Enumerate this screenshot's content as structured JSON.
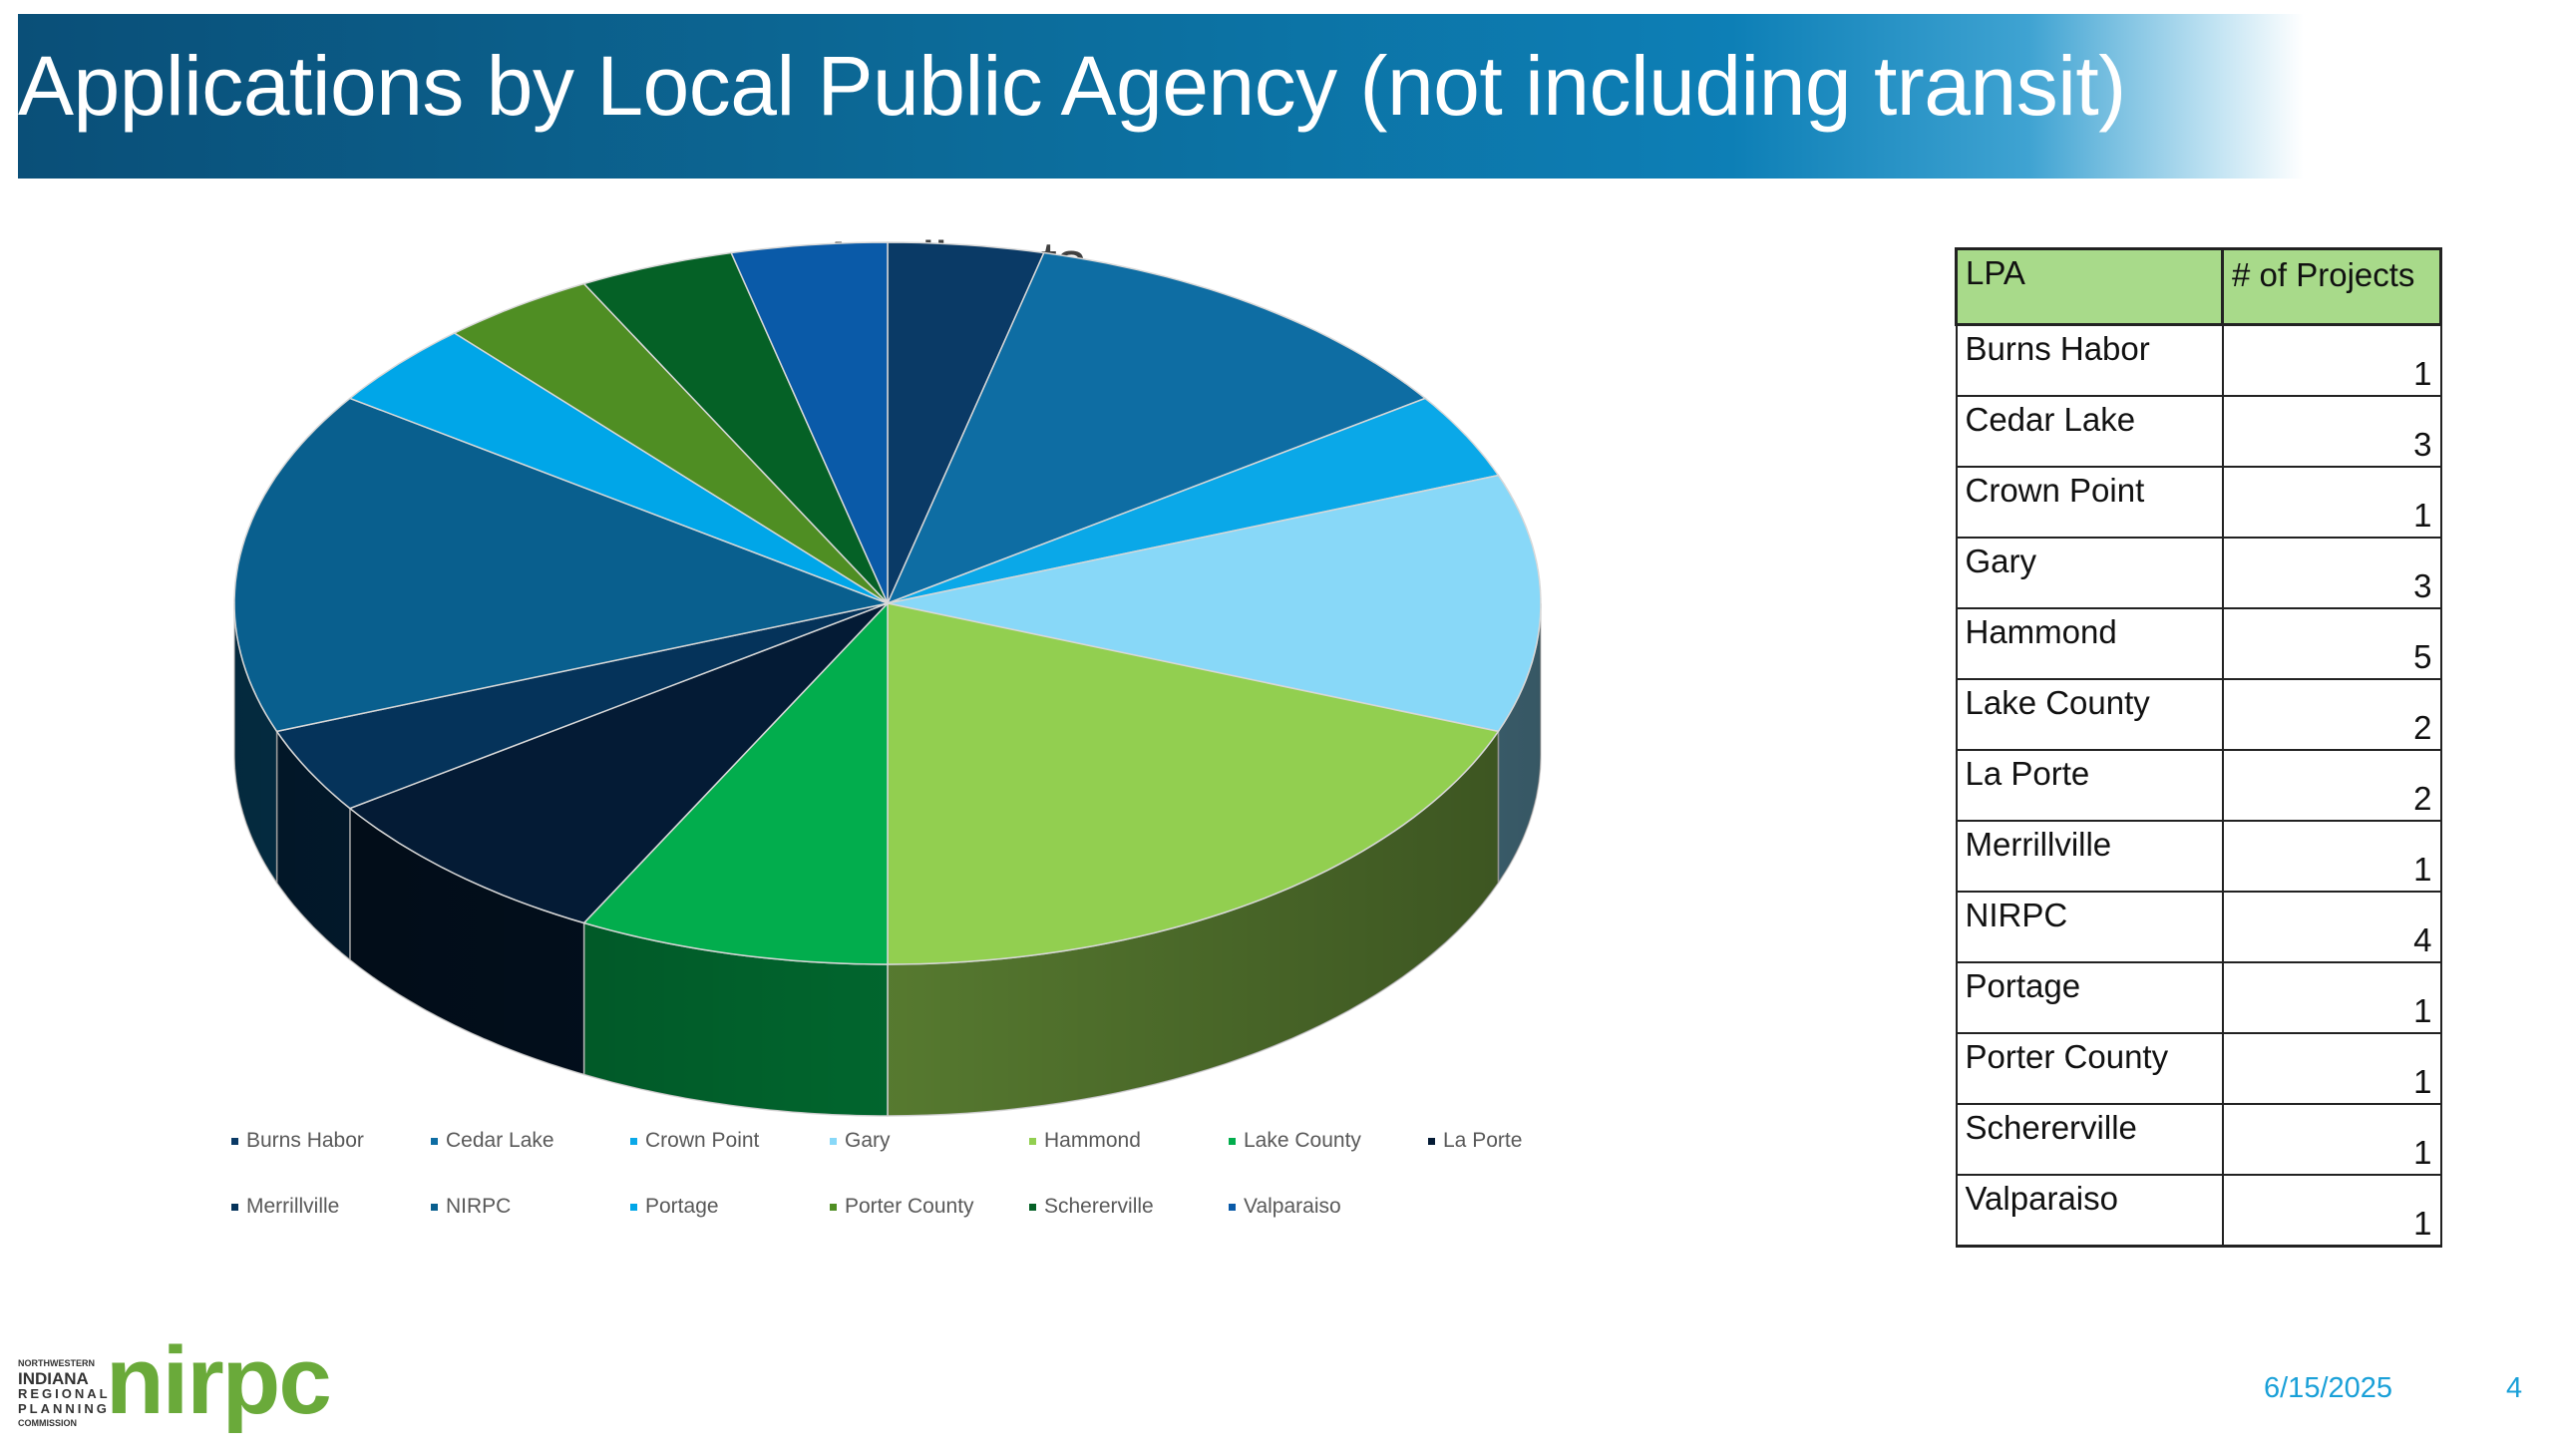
{
  "slide": {
    "title": "Applications by Local Public Agency (not including transit)",
    "date": "6/15/2025",
    "page_number": "4"
  },
  "logo": {
    "small_lines": [
      "NORTHWESTERN",
      "INDIANA",
      "REGIONAL",
      "PLANNING",
      "COMMISSION"
    ],
    "wordmark": "nirpc"
  },
  "chart_data": {
    "type": "pie",
    "title": "Applicants",
    "labels": [
      "Burns Habor",
      "Cedar Lake",
      "Crown Point",
      "Gary",
      "Hammond",
      "Lake County",
      "La Porte",
      "Merrillville",
      "NIRPC",
      "Portage",
      "Porter County",
      "Schererville",
      "Valparaiso"
    ],
    "values": [
      1,
      3,
      1,
      3,
      5,
      2,
      2,
      1,
      4,
      1,
      1,
      1,
      1
    ],
    "colors": [
      "#0a3a66",
      "#0e6da3",
      "#0aa8e8",
      "#88d8f8",
      "#92cf50",
      "#02ad4d",
      "#041b35",
      "#05335a",
      "#095f8e",
      "#00a6e8",
      "#4f8e23",
      "#056126",
      "#0a5aa8"
    ],
    "legend_position": "bottom",
    "three_d": true
  },
  "table": {
    "headers": [
      "LPA",
      "# of Projects"
    ],
    "rows": [
      [
        "Burns Habor",
        "1"
      ],
      [
        "Cedar Lake",
        "3"
      ],
      [
        "Crown Point",
        "1"
      ],
      [
        "Gary",
        "3"
      ],
      [
        "Hammond",
        "5"
      ],
      [
        "Lake County",
        "2"
      ],
      [
        "La Porte",
        "2"
      ],
      [
        "Merrillville",
        "1"
      ],
      [
        "NIRPC",
        "4"
      ],
      [
        "Portage",
        "1"
      ],
      [
        "Porter County",
        "1"
      ],
      [
        "Schererville",
        "1"
      ],
      [
        "Valparaiso",
        "1"
      ]
    ]
  }
}
